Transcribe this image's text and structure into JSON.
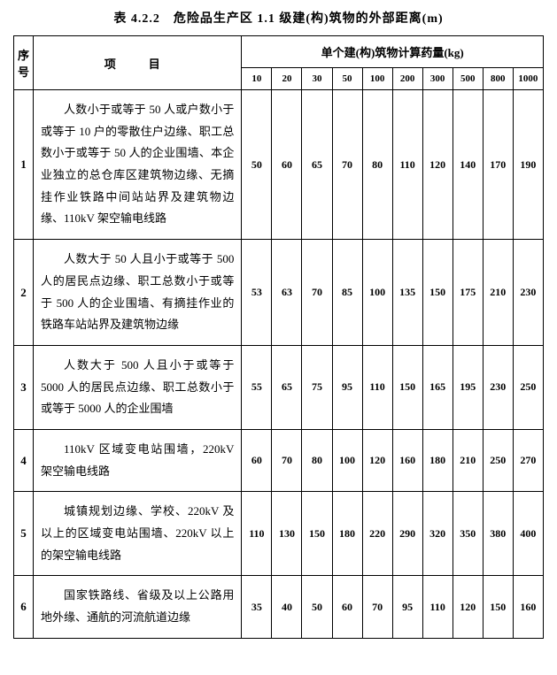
{
  "title": "表 4.2.2　危险品生产区 1.1 级建(构)筑物的外部距离(m)",
  "headers": {
    "seq": "序号",
    "item": "项　目",
    "kg_group": "单个建(构)筑物计算药量(kg)",
    "kg_values": [
      "10",
      "20",
      "30",
      "50",
      "100",
      "200",
      "300",
      "500",
      "800",
      "1000"
    ]
  },
  "rows": [
    {
      "seq": "1",
      "item": "人数小于或等于 50 人或户数小于或等于 10 户的零散住户边缘、职工总数小于或等于 50 人的企业围墙、本企业独立的总仓库区建筑物边缘、无摘挂作业铁路中间站站界及建筑物边缘、110kV 架空输电线路",
      "values": [
        "50",
        "60",
        "65",
        "70",
        "80",
        "110",
        "120",
        "140",
        "170",
        "190"
      ]
    },
    {
      "seq": "2",
      "item": "人数大于 50 人且小于或等于 500 人的居民点边缘、职工总数小于或等于 500 人的企业围墙、有摘挂作业的铁路车站站界及建筑物边缘",
      "values": [
        "53",
        "63",
        "70",
        "85",
        "100",
        "135",
        "150",
        "175",
        "210",
        "230"
      ]
    },
    {
      "seq": "3",
      "item": "人数大于 500 人且小于或等于 5000 人的居民点边缘、职工总数小于或等于 5000 人的企业围墙",
      "values": [
        "55",
        "65",
        "75",
        "95",
        "110",
        "150",
        "165",
        "195",
        "230",
        "250"
      ]
    },
    {
      "seq": "4",
      "item": "110kV 区域变电站围墙，220kV 架空输电线路",
      "values": [
        "60",
        "70",
        "80",
        "100",
        "120",
        "160",
        "180",
        "210",
        "250",
        "270"
      ]
    },
    {
      "seq": "5",
      "item": "城镇规划边缘、学校、220kV 及以上的区域变电站围墙、220kV 以上的架空输电线路",
      "values": [
        "110",
        "130",
        "150",
        "180",
        "220",
        "290",
        "320",
        "350",
        "380",
        "400"
      ]
    },
    {
      "seq": "6",
      "item": "国家铁路线、省级及以上公路用地外缘、通航的河流航道边缘",
      "values": [
        "35",
        "40",
        "50",
        "60",
        "70",
        "95",
        "110",
        "120",
        "150",
        "160"
      ]
    }
  ]
}
